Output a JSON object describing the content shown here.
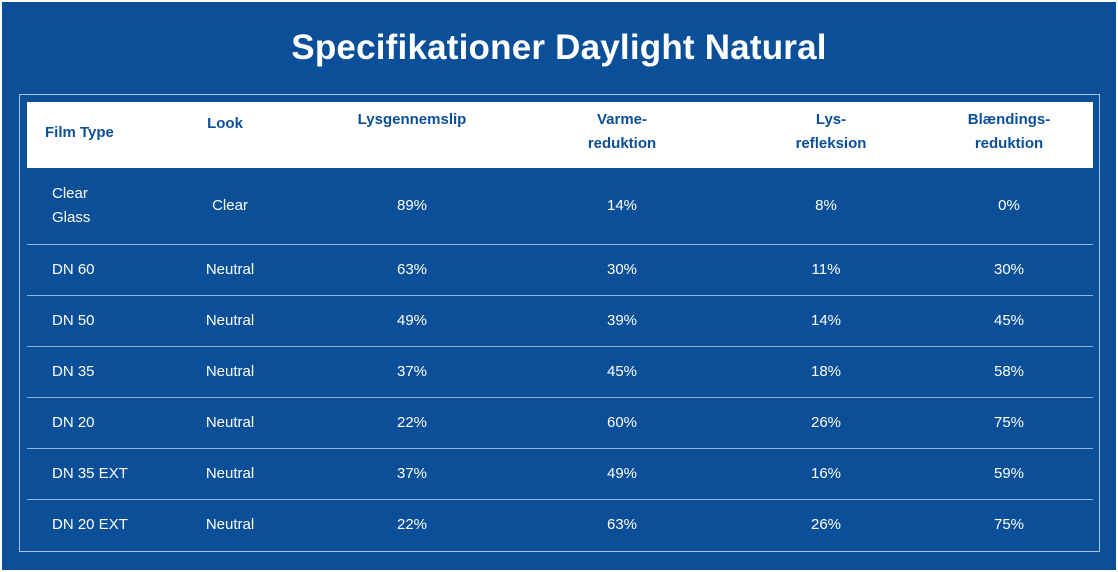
{
  "title": "Specifikationer Daylight Natural",
  "columns": [
    {
      "line1": "Film Type",
      "line2": ""
    },
    {
      "line1": "Look",
      "line2": ""
    },
    {
      "line1": "Lysgennemslip",
      "line2": ""
    },
    {
      "line1": "Varme-",
      "line2": "reduktion"
    },
    {
      "line1": "Lys-",
      "line2": "refleksion"
    },
    {
      "line1": "Blændings-",
      "line2": "reduktion"
    }
  ],
  "rows": [
    {
      "film_line1": "Clear",
      "film_line2": "Glass",
      "look": "Clear",
      "lysgennemslip": "89%",
      "varmereduktion": "14%",
      "lysrefleksion": "8%",
      "blaendingsreduktion": "0%"
    },
    {
      "film_line1": "DN 60",
      "film_line2": "",
      "look": "Neutral",
      "lysgennemslip": "63%",
      "varmereduktion": "30%",
      "lysrefleksion": "11%",
      "blaendingsreduktion": "30%"
    },
    {
      "film_line1": "DN 50",
      "film_line2": "",
      "look": "Neutral",
      "lysgennemslip": "49%",
      "varmereduktion": "39%",
      "lysrefleksion": "14%",
      "blaendingsreduktion": "45%"
    },
    {
      "film_line1": "DN 35",
      "film_line2": "",
      "look": "Neutral",
      "lysgennemslip": "37%",
      "varmereduktion": "45%",
      "lysrefleksion": "18%",
      "blaendingsreduktion": "58%"
    },
    {
      "film_line1": "DN 20",
      "film_line2": "",
      "look": "Neutral",
      "lysgennemslip": "22%",
      "varmereduktion": "60%",
      "lysrefleksion": "26%",
      "blaendingsreduktion": "75%"
    },
    {
      "film_line1": "DN 35 EXT",
      "film_line2": "",
      "look": "Neutral",
      "lysgennemslip": "37%",
      "varmereduktion": "49%",
      "lysrefleksion": "16%",
      "blaendingsreduktion": "59%"
    },
    {
      "film_line1": "DN 20 EXT",
      "film_line2": "",
      "look": "Neutral",
      "lysgennemslip": "22%",
      "varmereduktion": "63%",
      "lysrefleksion": "26%",
      "blaendingsreduktion": "75%"
    }
  ],
  "colors": {
    "background": "#0b4f99",
    "header_background": "#ffffff",
    "header_text": "#0b4f99",
    "body_text": "#ffffff"
  }
}
